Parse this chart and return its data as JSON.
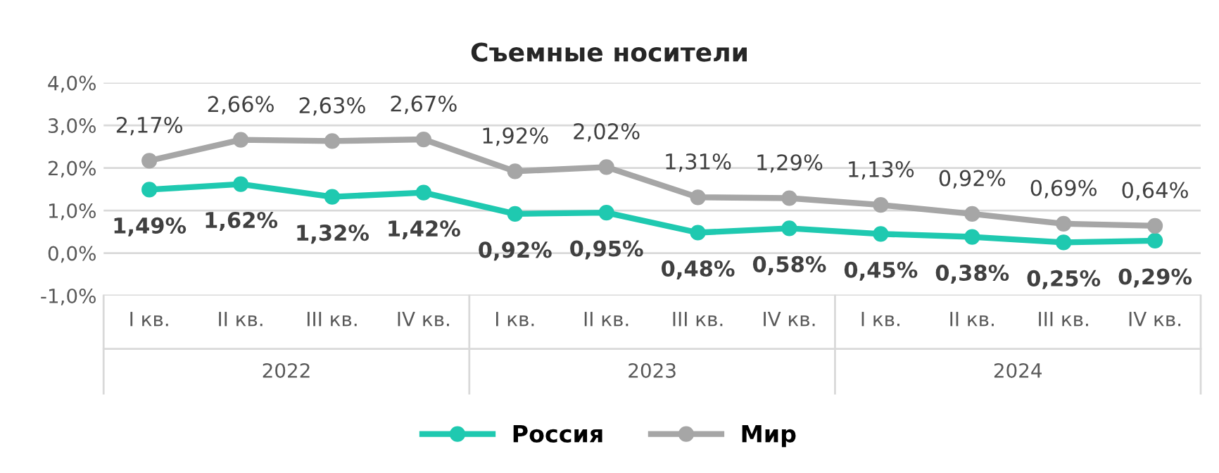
{
  "chart_data": {
    "type": "line",
    "title": "Съемные носители",
    "categories": [
      "I кв.",
      "II кв.",
      "III кв.",
      "IV кв.",
      "I кв.",
      "II кв.",
      "III кв.",
      "IV кв.",
      "I кв.",
      "II кв.",
      "III кв.",
      "IV кв."
    ],
    "annotations": [
      "2022",
      "2023",
      "2024"
    ],
    "series": [
      {
        "name": "Россия",
        "color": "#1fc9b0",
        "values": [
          1.49,
          1.62,
          1.32,
          1.42,
          0.92,
          0.95,
          0.48,
          0.58,
          0.45,
          0.38,
          0.25,
          0.29
        ],
        "value_labels": [
          "1,49%",
          "1,62%",
          "1,32%",
          "1,42%",
          "0,92%",
          "0,95%",
          "0,48%",
          "0,58%",
          "0,45%",
          "0,38%",
          "0,25%",
          "0,29%"
        ]
      },
      {
        "name": "Мир",
        "color": "#a6a6a6",
        "values": [
          2.17,
          2.66,
          2.63,
          2.67,
          1.92,
          2.02,
          1.31,
          1.29,
          1.13,
          0.92,
          0.69,
          0.64
        ],
        "value_labels": [
          "2,17%",
          "2,66%",
          "2,63%",
          "2,67%",
          "1,92%",
          "2,02%",
          "1,31%",
          "1,29%",
          "1,13%",
          "0,92%",
          "0,69%",
          "0,64%"
        ]
      }
    ],
    "ylim": [
      -1,
      4
    ],
    "yticks": [
      {
        "value": -1,
        "label": "-1,0%"
      },
      {
        "value": 0,
        "label": "0,0%"
      },
      {
        "value": 1,
        "label": "1,0%"
      },
      {
        "value": 2,
        "label": "2,0%"
      },
      {
        "value": 3,
        "label": "3,0%"
      },
      {
        "value": 4,
        "label": "4,0%"
      }
    ],
    "grid": "y",
    "legend": "bottom",
    "marker": "circle",
    "line_style": "solid"
  }
}
